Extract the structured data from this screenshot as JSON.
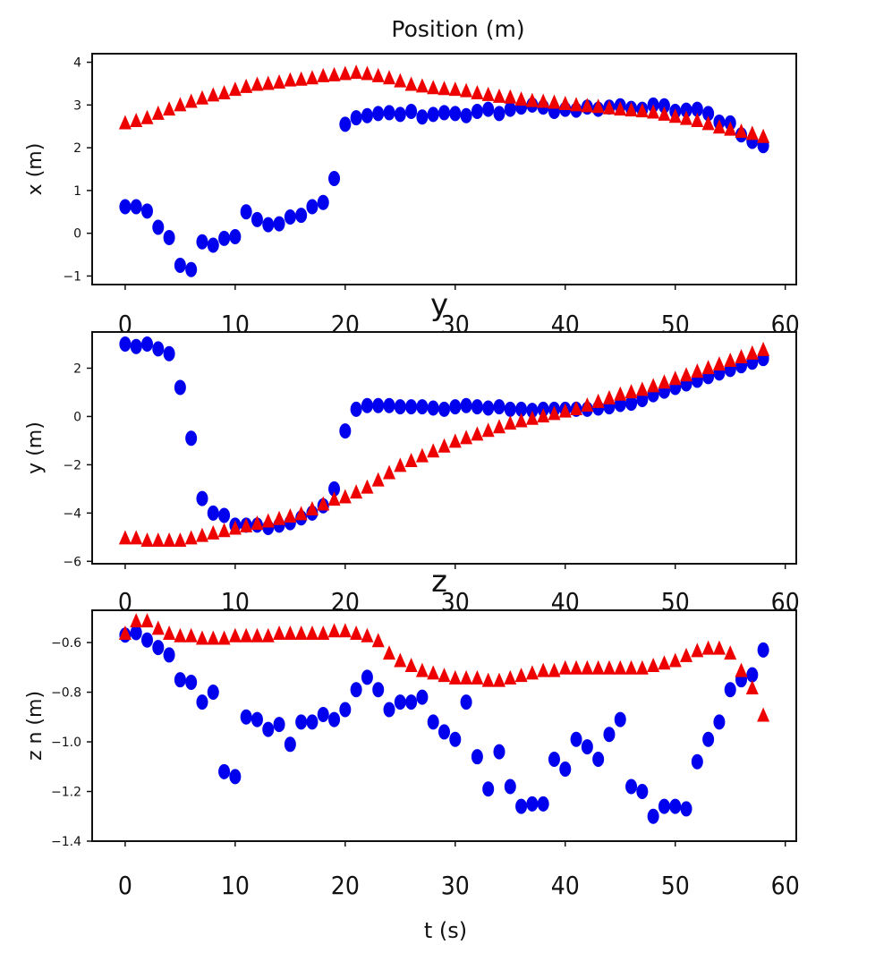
{
  "figure_title": "Position (m)",
  "xlabel_shared": "t (s)",
  "chart_data": [
    {
      "type": "scatter",
      "title": "",
      "ylabel": "x (m)",
      "xlabel": "",
      "xlim": [
        -3,
        61
      ],
      "ylim": [
        -1.2,
        4.2
      ],
      "xticks": [
        0,
        10,
        20,
        30,
        40,
        50,
        60
      ],
      "yticks": [
        -1,
        0,
        1,
        2,
        3,
        4
      ],
      "x": [
        0,
        1,
        2,
        3,
        4,
        5,
        6,
        7,
        8,
        9,
        10,
        11,
        12,
        13,
        14,
        15,
        16,
        17,
        18,
        19,
        20,
        21,
        22,
        23,
        24,
        25,
        26,
        27,
        28,
        29,
        30,
        31,
        32,
        33,
        34,
        35,
        36,
        37,
        38,
        39,
        40,
        41,
        42,
        43,
        44,
        45,
        46,
        47,
        48,
        49,
        50,
        51,
        52,
        53,
        54,
        55,
        56,
        57,
        58
      ],
      "series": [
        {
          "name": "blue",
          "color": "#0000ee",
          "marker": "circle",
          "values": [
            0.62,
            0.62,
            0.52,
            0.14,
            -0.1,
            -0.75,
            -0.85,
            -0.2,
            -0.28,
            -0.12,
            -0.08,
            0.5,
            0.32,
            0.2,
            0.22,
            0.38,
            0.42,
            0.62,
            0.72,
            1.28,
            2.55,
            2.7,
            2.75,
            2.8,
            2.82,
            2.78,
            2.85,
            2.72,
            2.78,
            2.82,
            2.8,
            2.75,
            2.85,
            2.9,
            2.8,
            2.9,
            2.95,
            3.0,
            2.95,
            2.85,
            2.9,
            2.88,
            2.95,
            2.9,
            2.95,
            2.98,
            2.92,
            2.9,
            3.0,
            2.98,
            2.85,
            2.88,
            2.9,
            2.8,
            2.6,
            2.58,
            2.3,
            2.15,
            2.05
          ]
        },
        {
          "name": "red",
          "color": "#ee0000",
          "marker": "triangle",
          "values": [
            2.6,
            2.65,
            2.72,
            2.82,
            2.92,
            3.02,
            3.1,
            3.18,
            3.25,
            3.3,
            3.38,
            3.45,
            3.5,
            3.52,
            3.55,
            3.6,
            3.62,
            3.65,
            3.7,
            3.72,
            3.75,
            3.78,
            3.75,
            3.7,
            3.65,
            3.58,
            3.5,
            3.46,
            3.42,
            3.4,
            3.38,
            3.35,
            3.3,
            3.26,
            3.22,
            3.2,
            3.15,
            3.12,
            3.1,
            3.08,
            3.05,
            3.02,
            3.0,
            2.98,
            2.95,
            2.92,
            2.9,
            2.88,
            2.85,
            2.8,
            2.75,
            2.7,
            2.65,
            2.58,
            2.5,
            2.45,
            2.4,
            2.35,
            2.28
          ]
        }
      ]
    },
    {
      "type": "scatter",
      "title": "y",
      "ylabel": "y (m)",
      "xlabel": "",
      "xlim": [
        -3,
        61
      ],
      "ylim": [
        -6.1,
        3.5
      ],
      "xticks": [
        0,
        10,
        20,
        30,
        40,
        50,
        60
      ],
      "yticks": [
        -6,
        -4,
        -2,
        0,
        2
      ],
      "x": [
        0,
        1,
        2,
        3,
        4,
        5,
        6,
        7,
        8,
        9,
        10,
        11,
        12,
        13,
        14,
        15,
        16,
        17,
        18,
        19,
        20,
        21,
        22,
        23,
        24,
        25,
        26,
        27,
        28,
        29,
        30,
        31,
        32,
        33,
        34,
        35,
        36,
        37,
        38,
        39,
        40,
        41,
        42,
        43,
        44,
        45,
        46,
        47,
        48,
        49,
        50,
        51,
        52,
        53,
        54,
        55,
        56,
        57,
        58
      ],
      "series": [
        {
          "name": "blue",
          "color": "#0000ee",
          "marker": "circle",
          "values": [
            3.0,
            2.9,
            3.0,
            2.8,
            2.6,
            1.2,
            -0.9,
            -3.4,
            -4.0,
            -4.1,
            -4.5,
            -4.5,
            -4.5,
            -4.6,
            -4.5,
            -4.4,
            -4.2,
            -4.0,
            -3.7,
            -3.0,
            -0.6,
            0.3,
            0.45,
            0.45,
            0.45,
            0.4,
            0.4,
            0.4,
            0.35,
            0.3,
            0.4,
            0.45,
            0.4,
            0.35,
            0.4,
            0.3,
            0.3,
            0.25,
            0.3,
            0.3,
            0.3,
            0.3,
            0.3,
            0.35,
            0.4,
            0.5,
            0.55,
            0.7,
            0.9,
            1.05,
            1.2,
            1.35,
            1.5,
            1.65,
            1.8,
            1.95,
            2.1,
            2.25,
            2.4
          ]
        },
        {
          "name": "red",
          "color": "#ee0000",
          "marker": "triangle",
          "values": [
            -5.0,
            -5.0,
            -5.1,
            -5.1,
            -5.1,
            -5.1,
            -5.0,
            -4.9,
            -4.8,
            -4.7,
            -4.6,
            -4.5,
            -4.4,
            -4.3,
            -4.2,
            -4.1,
            -4.0,
            -3.8,
            -3.6,
            -3.4,
            -3.3,
            -3.1,
            -2.9,
            -2.6,
            -2.3,
            -2.0,
            -1.8,
            -1.6,
            -1.4,
            -1.2,
            -1.0,
            -0.85,
            -0.7,
            -0.55,
            -0.4,
            -0.25,
            -0.15,
            -0.05,
            0.05,
            0.15,
            0.25,
            0.35,
            0.5,
            0.65,
            0.8,
            0.95,
            1.05,
            1.15,
            1.3,
            1.45,
            1.6,
            1.75,
            1.9,
            2.05,
            2.2,
            2.35,
            2.5,
            2.65,
            2.8
          ]
        }
      ]
    },
    {
      "type": "scatter",
      "title": "z",
      "ylabel": "z n (m)",
      "xlabel": "t (s)",
      "xlim": [
        -3,
        61
      ],
      "ylim": [
        -1.4,
        -0.47
      ],
      "xticks": [
        0,
        10,
        20,
        30,
        40,
        50,
        60
      ],
      "yticks": [
        -1.4,
        -1.2,
        -1.0,
        -0.8,
        -0.6
      ],
      "ytick_labels": [
        "−1.4",
        "−1.2",
        "−1.0",
        "−0.8",
        "−0.6"
      ],
      "x": [
        0,
        1,
        2,
        3,
        4,
        5,
        6,
        7,
        8,
        9,
        10,
        11,
        12,
        13,
        14,
        15,
        16,
        17,
        18,
        19,
        20,
        21,
        22,
        23,
        24,
        25,
        26,
        27,
        28,
        29,
        30,
        31,
        32,
        33,
        34,
        35,
        36,
        37,
        38,
        39,
        40,
        41,
        42,
        43,
        44,
        45,
        46,
        47,
        48,
        49,
        50,
        51,
        52,
        53,
        54,
        55,
        56,
        57,
        58
      ],
      "series": [
        {
          "name": "blue",
          "color": "#0000ee",
          "marker": "circle",
          "values": [
            -0.57,
            -0.56,
            -0.59,
            -0.62,
            -0.65,
            -0.75,
            -0.76,
            -0.84,
            -0.8,
            -1.12,
            -1.14,
            -0.9,
            -0.91,
            -0.95,
            -0.93,
            -1.01,
            -0.92,
            -0.92,
            -0.89,
            -0.91,
            -0.87,
            -0.79,
            -0.74,
            -0.79,
            -0.87,
            -0.84,
            -0.84,
            -0.82,
            -0.92,
            -0.96,
            -0.99,
            -0.84,
            -1.06,
            -1.19,
            -1.04,
            -1.18,
            -1.26,
            -1.25,
            -1.25,
            -1.07,
            -1.11,
            -0.99,
            -1.02,
            -1.07,
            -0.97,
            -0.91,
            -1.18,
            -1.2,
            -1.3,
            -1.26,
            -1.26,
            -1.27,
            -1.08,
            -0.99,
            -0.92,
            -0.79,
            -0.75,
            -0.73,
            -0.63
          ]
        },
        {
          "name": "red",
          "color": "#ee0000",
          "marker": "triangle",
          "values": [
            -0.56,
            -0.51,
            -0.51,
            -0.54,
            -0.56,
            -0.57,
            -0.57,
            -0.58,
            -0.58,
            -0.58,
            -0.57,
            -0.57,
            -0.57,
            -0.57,
            -0.56,
            -0.56,
            -0.56,
            -0.56,
            -0.56,
            -0.55,
            -0.55,
            -0.56,
            -0.57,
            -0.59,
            -0.64,
            -0.67,
            -0.69,
            -0.71,
            -0.72,
            -0.73,
            -0.74,
            -0.74,
            -0.74,
            -0.75,
            -0.75,
            -0.74,
            -0.73,
            -0.72,
            -0.71,
            -0.71,
            -0.7,
            -0.7,
            -0.7,
            -0.7,
            -0.7,
            -0.7,
            -0.7,
            -0.7,
            -0.69,
            -0.68,
            -0.67,
            -0.65,
            -0.63,
            -0.62,
            -0.62,
            -0.64,
            -0.71,
            -0.78,
            -0.89
          ]
        }
      ]
    }
  ]
}
